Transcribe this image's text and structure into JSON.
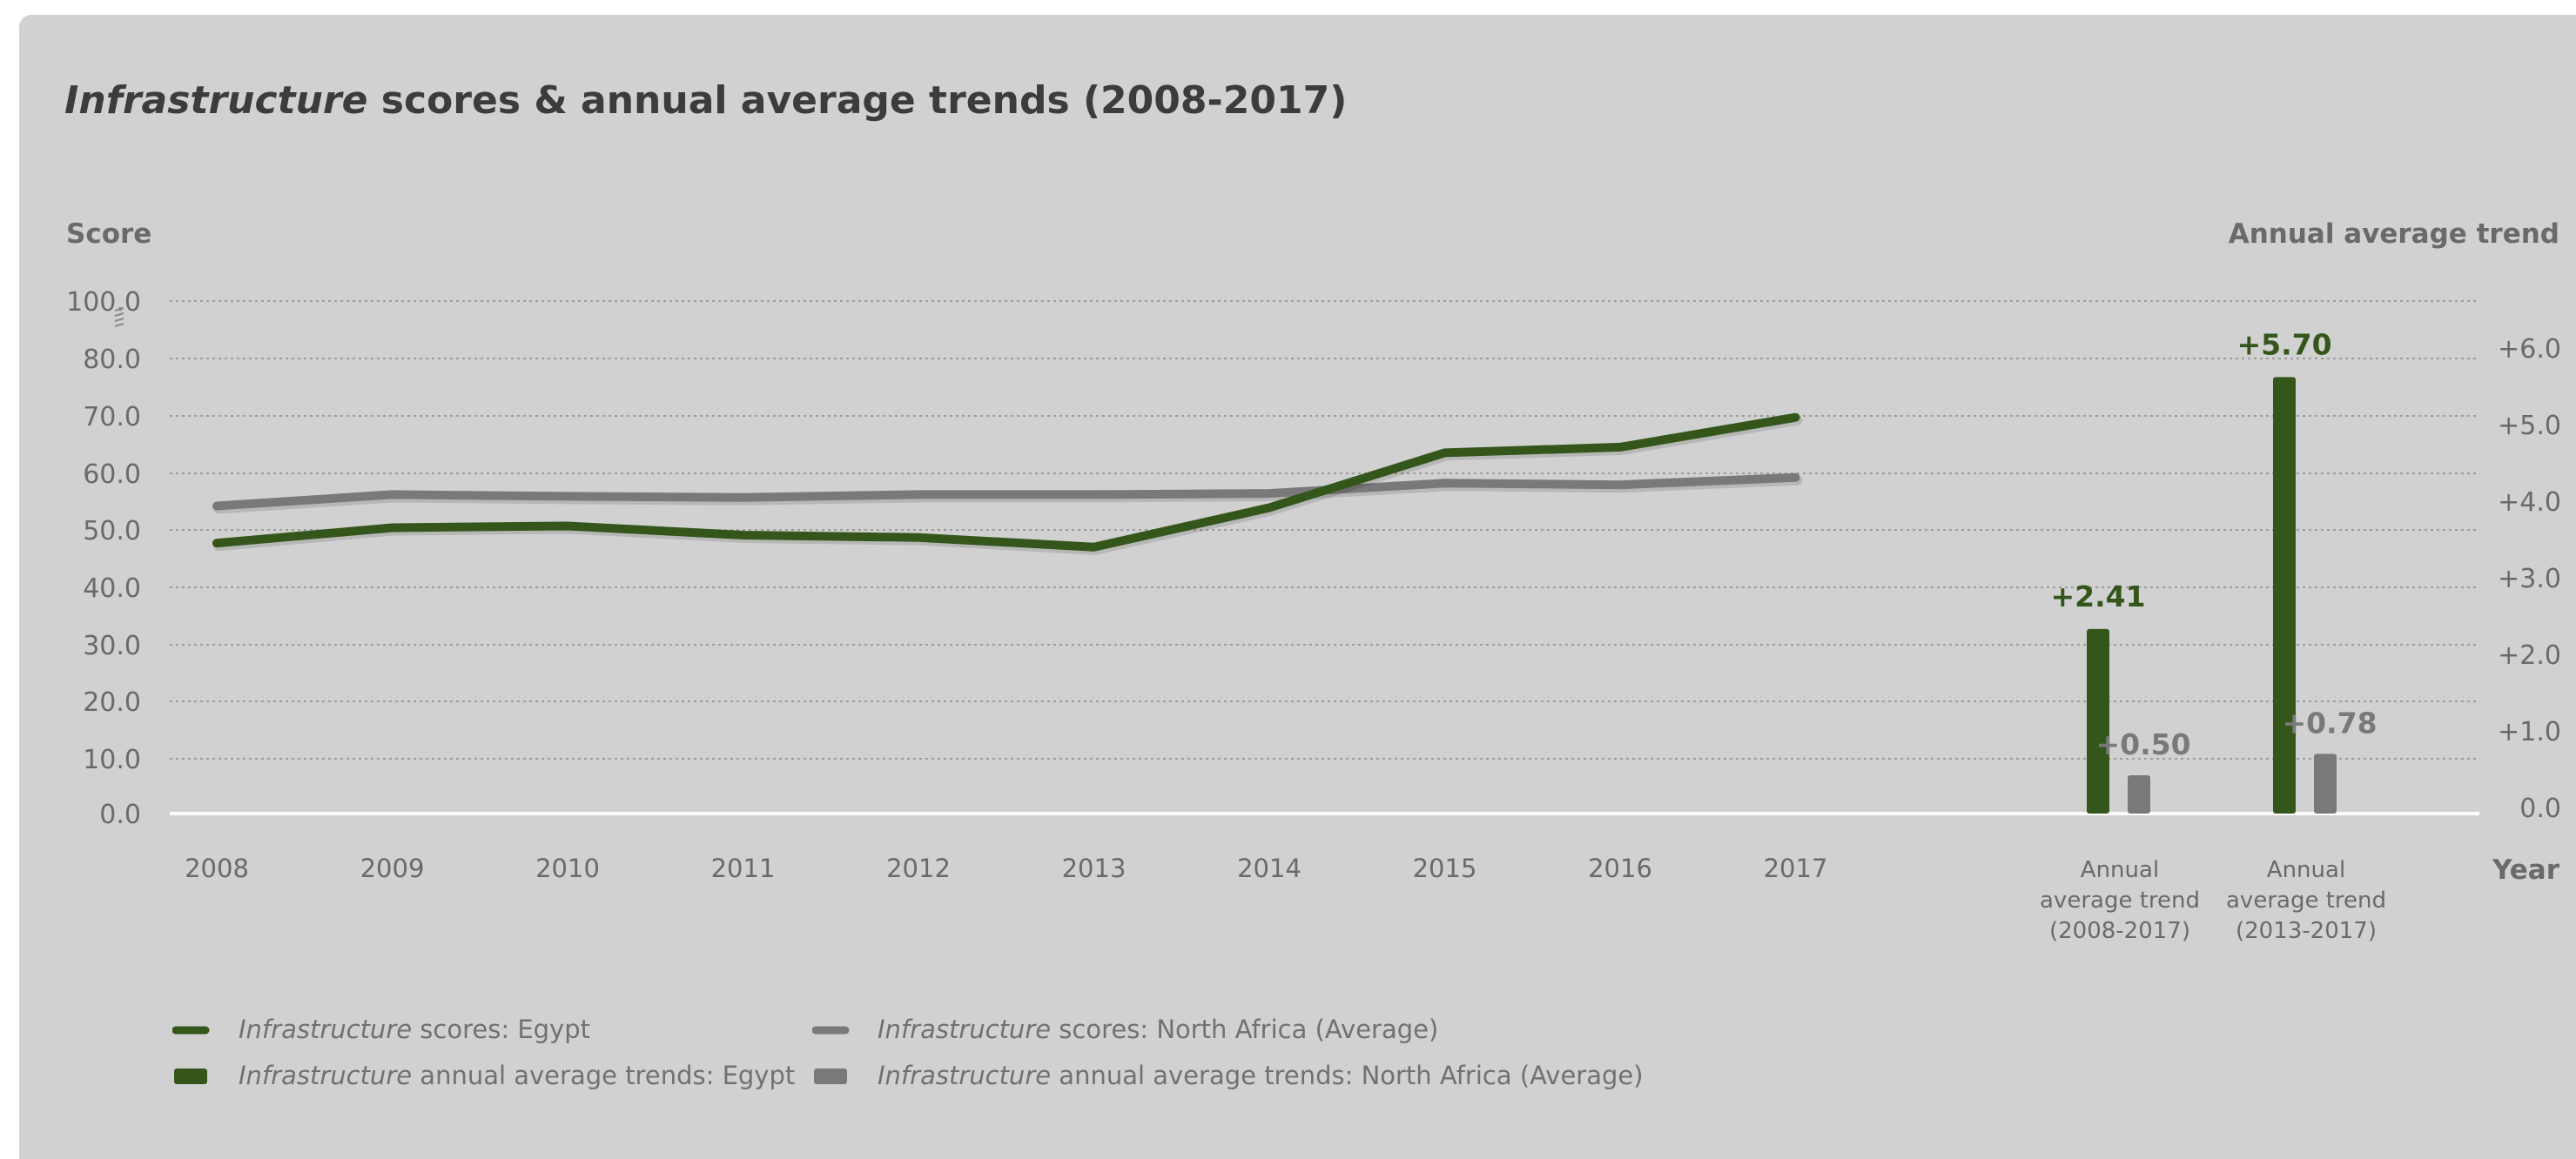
{
  "title": {
    "italic": "Infrastructure",
    "rest": " scores & annual average trends (2008-2017)"
  },
  "chart_data": {
    "type": "line",
    "y_left_label": "Score",
    "y_right_label": "Annual average trend",
    "x_axis_label": "Year",
    "left_ticks": [
      "100.0",
      "80.0",
      "70.0",
      "60.0",
      "50.0",
      "40.0",
      "30.0",
      "20.0",
      "10.0",
      "0.0"
    ],
    "right_ticks": [
      "+6.0",
      "+5.0",
      "+4.0",
      "+3.0",
      "+2.0",
      "+1.0",
      "0.0"
    ],
    "ylim_left": [
      0,
      90
    ],
    "ylim_right": [
      0,
      6.5
    ],
    "categories": [
      "2008",
      "2009",
      "2010",
      "2011",
      "2012",
      "2013",
      "2014",
      "2015",
      "2016",
      "2017"
    ],
    "series": [
      {
        "name_italic": "Infrastructure",
        "name_rest": " scores: Egypt",
        "color": "#34561b",
        "values": [
          47.3,
          50.0,
          50.3,
          48.7,
          48.3,
          46.6,
          53.5,
          63.1,
          64.1,
          69.3
        ]
      },
      {
        "name_italic": "Infrastructure",
        "name_rest": " scores: North Africa (Average)",
        "color": "#79797b",
        "values": [
          53.8,
          55.8,
          55.5,
          55.3,
          55.8,
          55.8,
          56.0,
          57.8,
          57.5,
          58.8
        ]
      }
    ],
    "trend_groups": [
      {
        "label_lines": [
          "Annual",
          "average trend",
          "(2008-2017)"
        ],
        "egypt": 2.41,
        "egypt_label": "+2.41",
        "north_africa": 0.5,
        "north_africa_label": "+0.50"
      },
      {
        "label_lines": [
          "Annual",
          "average trend",
          "(2013-2017)"
        ],
        "egypt": 5.7,
        "egypt_label": "+5.70",
        "north_africa": 0.78,
        "north_africa_label": "+0.78"
      }
    ],
    "trend_series": [
      {
        "name_italic": "Infrastructure",
        "name_rest": " annual average trends: Egypt",
        "color": "#34561b"
      },
      {
        "name_italic": "Infrastructure",
        "name_rest": " annual average trends: North Africa (Average)",
        "color": "#79797b"
      }
    ],
    "grid": true,
    "legend_position": "bottom-left"
  }
}
